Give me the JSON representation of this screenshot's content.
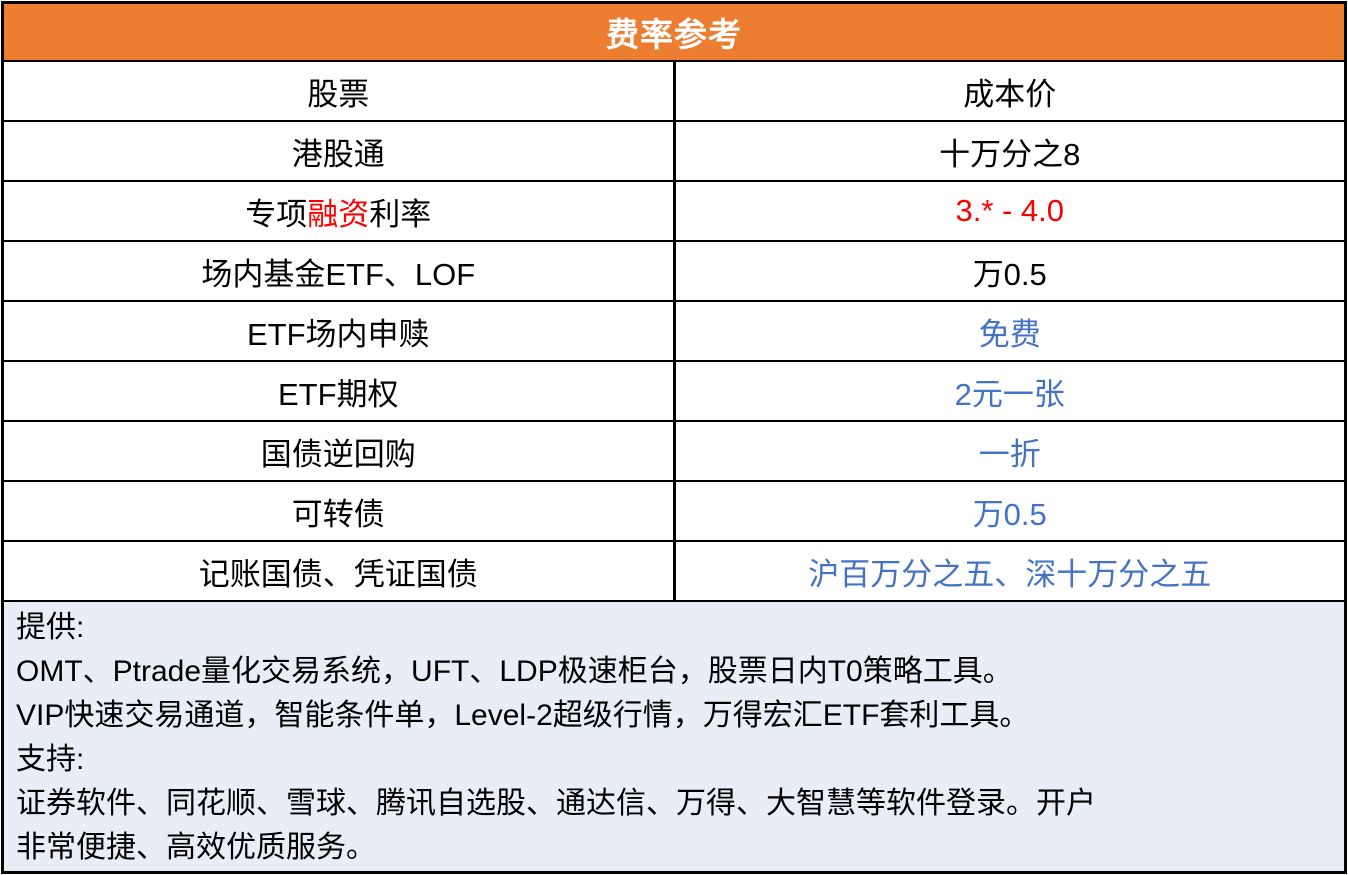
{
  "colors": {
    "header_bg": "#ED7D31",
    "header_text": "#FFFFFF",
    "border": "#000000",
    "text": "#000000",
    "blue": "#4472C4",
    "red": "#FF0000",
    "footer_bg": "#E9EDF6",
    "row_bg": "#FFFFFF"
  },
  "header": {
    "title": "费率参考"
  },
  "table": {
    "rows": [
      {
        "item": [
          {
            "text": "股票",
            "color": "text"
          }
        ],
        "value": [
          {
            "text": "成本价",
            "color": "text"
          }
        ]
      },
      {
        "item": [
          {
            "text": "港股通",
            "color": "text"
          }
        ],
        "value": [
          {
            "text": "十万分之8",
            "color": "text"
          }
        ]
      },
      {
        "item": [
          {
            "text": "专项",
            "color": "text"
          },
          {
            "text": "融资",
            "color": "red"
          },
          {
            "text": "利率",
            "color": "text"
          }
        ],
        "value": [
          {
            "text": "3.* - 4.0",
            "color": "red"
          }
        ]
      },
      {
        "item": [
          {
            "text": "场内基金ETF、LOF",
            "color": "text"
          }
        ],
        "value": [
          {
            "text": "万0.5",
            "color": "text"
          }
        ]
      },
      {
        "item": [
          {
            "text": "ETF场内申赎",
            "color": "text"
          }
        ],
        "value": [
          {
            "text": "免费",
            "color": "blue"
          }
        ]
      },
      {
        "item": [
          {
            "text": "ETF期权",
            "color": "text"
          }
        ],
        "value": [
          {
            "text": "2元一张",
            "color": "blue"
          }
        ]
      },
      {
        "item": [
          {
            "text": "国债逆回购",
            "color": "text"
          }
        ],
        "value": [
          {
            "text": "一折",
            "color": "blue"
          }
        ]
      },
      {
        "item": [
          {
            "text": "可转债",
            "color": "text"
          }
        ],
        "value": [
          {
            "text": "万0.5",
            "color": "blue"
          }
        ]
      },
      {
        "item": [
          {
            "text": "记账国债、凭证国债",
            "color": "text"
          }
        ],
        "value": [
          {
            "text": "沪百万分之五、深十万分之五",
            "color": "blue"
          }
        ]
      }
    ]
  },
  "notes": {
    "lines": [
      "提供:",
      "OMT、Ptrade量化交易系统，UFT、LDP极速柜台，股票日内T0策略工具。",
      "VIP快速交易通道，智能条件单，Level-2超级行情，万得宏汇ETF套利工具。",
      "支持:",
      "证券软件、同花顺、雪球、腾讯自选股、通达信、万得、大智慧等软件登录。开户",
      "非常便捷、高效优质服务。"
    ]
  }
}
